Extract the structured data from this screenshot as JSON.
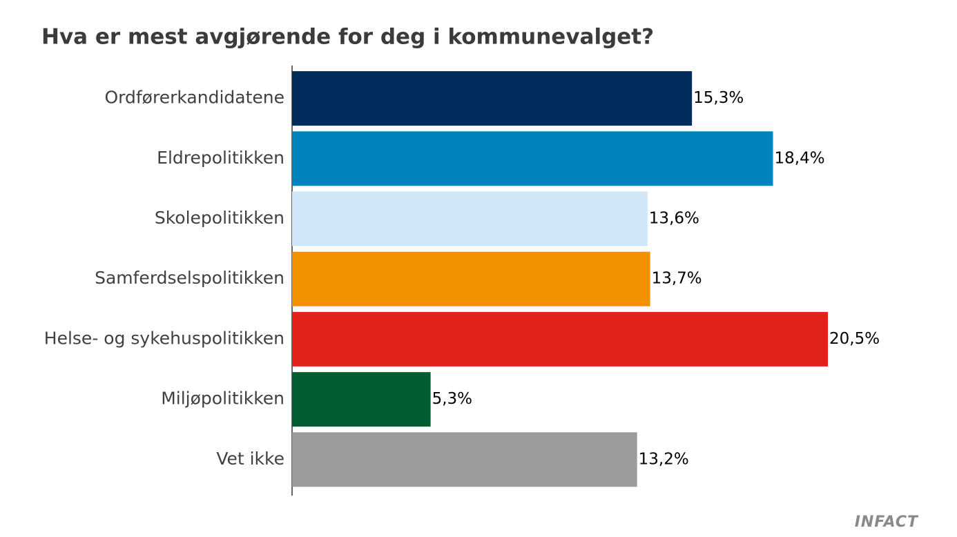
{
  "chart_data": {
    "type": "bar",
    "orientation": "horizontal",
    "title": "Hva er mest avgjørende for deg i kommunevalget?",
    "categories": [
      "Ordførerkandidatene",
      "Eldrepolitikken",
      "Skolepolitikken",
      "Samferdselspolitikken",
      "Helse- og sykehuspolitikken",
      "Miljøpolitikken",
      "Vet ikke"
    ],
    "values": [
      15.3,
      18.4,
      13.6,
      13.7,
      20.5,
      5.3,
      13.2
    ],
    "value_labels": [
      "15,3%",
      "18,4%",
      "13,6%",
      "13,7%",
      "20,5%",
      "5,3%",
      "13,2%"
    ],
    "colors": [
      "#002d5c",
      "#0083be",
      "#d1e6f6",
      "#f29100",
      "#e2231a",
      "#005e33",
      "#9b9b9b"
    ]
  },
  "logo": "INFACT"
}
